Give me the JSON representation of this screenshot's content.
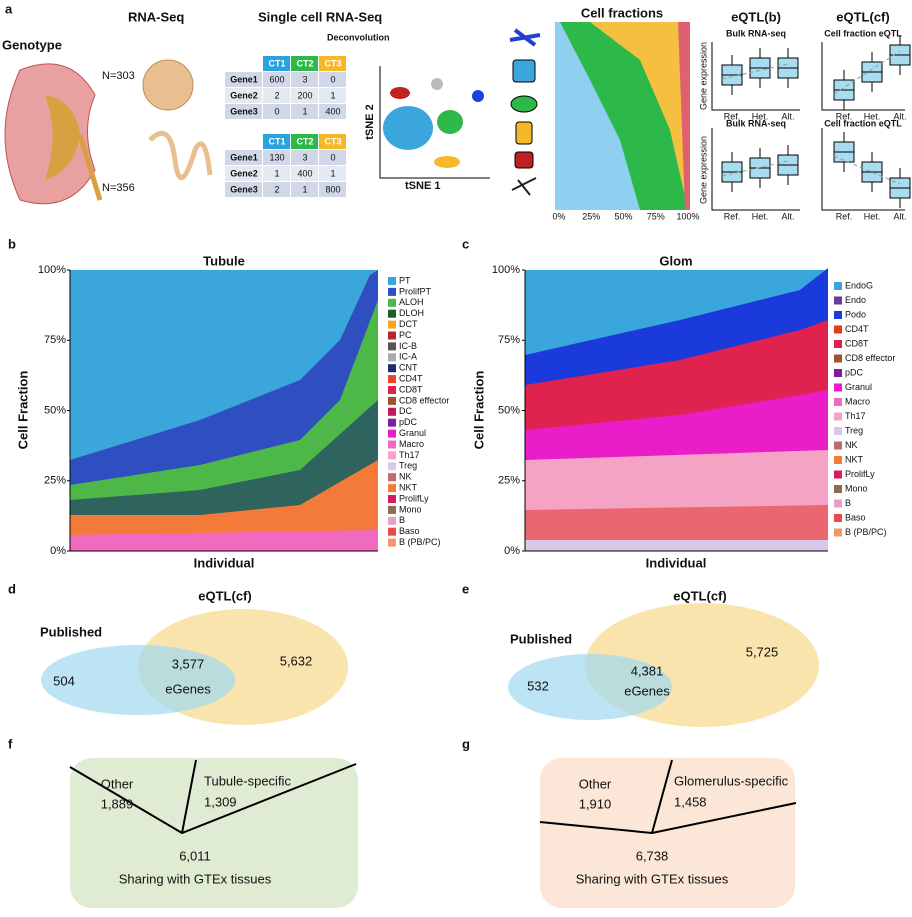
{
  "panel_a": {
    "label": "a",
    "genotype": "Genotype",
    "rna_seq": "RNA-Seq",
    "sc_rna_seq": "Single cell RNA-Seq",
    "deconvolution": "Deconvolution",
    "n_top": "N=303",
    "n_bottom": "N=356",
    "tables": [
      {
        "header": [
          "CT1",
          "CT2",
          "CT3"
        ],
        "rows": [
          [
            "Gene1",
            "600",
            "3",
            "0"
          ],
          [
            "Gene2",
            "2",
            "200",
            "1"
          ],
          [
            "Gene3",
            "0",
            "1",
            "400"
          ]
        ]
      },
      {
        "header": [
          "CT1",
          "CT2",
          "CT3"
        ],
        "rows": [
          [
            "Gene1",
            "130",
            "3",
            "0"
          ],
          [
            "Gene2",
            "1",
            "400",
            "1"
          ],
          [
            "Gene3",
            "2",
            "1",
            "800"
          ]
        ]
      }
    ],
    "tsne_x": "tSNE 1",
    "tsne_y": "tSNE 2",
    "cell_fractions": {
      "title": "Cell fractions",
      "xticks": [
        "0%",
        "25%",
        "50%",
        "75%",
        "100%"
      ]
    },
    "eqtl_b": {
      "title": "eQTL(b)",
      "subtitle_top": "Bulk RNA-seq",
      "subtitle_bottom": "Bulk RNA-seq"
    },
    "eqtl_cf": {
      "title": "eQTL(cf)",
      "subtitle_top": "Cell fraction eQTL",
      "subtitle_bottom": "Cell fraction eQTL"
    },
    "ylabel": "Gene expression",
    "genotypes": [
      "Ref.",
      "Het.",
      "Alt."
    ]
  },
  "panel_b": {
    "label": "b",
    "title": "Tubule",
    "ylabel": "Cell Fraction",
    "xlabel": "Individual",
    "yticks": [
      "0%",
      "25%",
      "50%",
      "75%",
      "100%"
    ],
    "legend": [
      {
        "name": "PT",
        "color": "#3aa6dc"
      },
      {
        "name": "ProlifPT",
        "color": "#2f4fc0"
      },
      {
        "name": "ALOH",
        "color": "#4db848"
      },
      {
        "name": "DLOH",
        "color": "#1a5e2a"
      },
      {
        "name": "DCT",
        "color": "#f5a623"
      },
      {
        "name": "PC",
        "color": "#b5272d"
      },
      {
        "name": "IC-B",
        "color": "#555555"
      },
      {
        "name": "IC-A",
        "color": "#aaaaaa"
      },
      {
        "name": "CNT",
        "color": "#1c2a6e"
      },
      {
        "name": "CD4T",
        "color": "#e8412c"
      },
      {
        "name": "CD8T",
        "color": "#e0224f"
      },
      {
        "name": "CD8 effector",
        "color": "#a0522d"
      },
      {
        "name": "DC",
        "color": "#c2185b"
      },
      {
        "name": "pDC",
        "color": "#7b1fa2"
      },
      {
        "name": "Granul",
        "color": "#e91ec9"
      },
      {
        "name": "Macro",
        "color": "#f06bc0"
      },
      {
        "name": "Th17",
        "color": "#f4a3c4"
      },
      {
        "name": "Treg",
        "color": "#d8c8e8"
      },
      {
        "name": "NK",
        "color": "#c06a6a"
      },
      {
        "name": "NKT",
        "color": "#f47a3a"
      },
      {
        "name": "ProlifLy",
        "color": "#d81b60"
      },
      {
        "name": "Mono",
        "color": "#8e6b50"
      },
      {
        "name": "B",
        "color": "#e8a0c8"
      },
      {
        "name": "Baso",
        "color": "#e84b4b"
      },
      {
        "name": "B (PB/PC)",
        "color": "#f4956a"
      }
    ]
  },
  "panel_c": {
    "label": "c",
    "title": "Glom",
    "ylabel": "Cell Fraction",
    "xlabel": "Individual",
    "yticks": [
      "0%",
      "25%",
      "50%",
      "75%",
      "100%"
    ],
    "legend": [
      {
        "name": "EndoG",
        "color": "#3aa6dc"
      },
      {
        "name": "Endo",
        "color": "#6a3aa0"
      },
      {
        "name": "Podo",
        "color": "#1a3adc"
      },
      {
        "name": "CD4T",
        "color": "#e83a1a"
      },
      {
        "name": "CD8T",
        "color": "#e0224f"
      },
      {
        "name": "CD8 effector",
        "color": "#a0522d"
      },
      {
        "name": "pDC",
        "color": "#7b1fa2"
      },
      {
        "name": "Granul",
        "color": "#e91ec9"
      },
      {
        "name": "Macro",
        "color": "#f06bc0"
      },
      {
        "name": "Th17",
        "color": "#f4a3c4"
      },
      {
        "name": "Treg",
        "color": "#d8c8e8"
      },
      {
        "name": "NK",
        "color": "#c06a6a"
      },
      {
        "name": "NKT",
        "color": "#f47a3a"
      },
      {
        "name": "ProlifLy",
        "color": "#d81b60"
      },
      {
        "name": "Mono",
        "color": "#8e6b50"
      },
      {
        "name": "B",
        "color": "#e8a0c8"
      },
      {
        "name": "Baso",
        "color": "#e84b4b"
      },
      {
        "name": "B (PB/PC)",
        "color": "#f4956a"
      }
    ]
  },
  "panel_d": {
    "label": "d",
    "title": "eQTL(cf)",
    "published": "Published",
    "only_published": "504",
    "overlap": "3,577",
    "overlap_label": "eGenes",
    "only_cf": "5,632"
  },
  "panel_e": {
    "label": "e",
    "title": "eQTL(cf)",
    "published": "Published",
    "only_published": "532",
    "overlap": "4,381",
    "overlap_label": "eGenes",
    "only_cf": "5,725"
  },
  "panel_f": {
    "label": "f",
    "other": "Other",
    "other_n": "1,889",
    "specific": "Tubule-specific",
    "specific_n": "1,309",
    "shared_n": "6,011",
    "shared": "Sharing with GTEx tissues"
  },
  "panel_g": {
    "label": "g",
    "other": "Other",
    "other_n": "1,910",
    "specific": "Glomerulus-specific",
    "specific_n": "1,458",
    "shared_n": "6,738",
    "shared": "Sharing with GTEx tissues"
  }
}
